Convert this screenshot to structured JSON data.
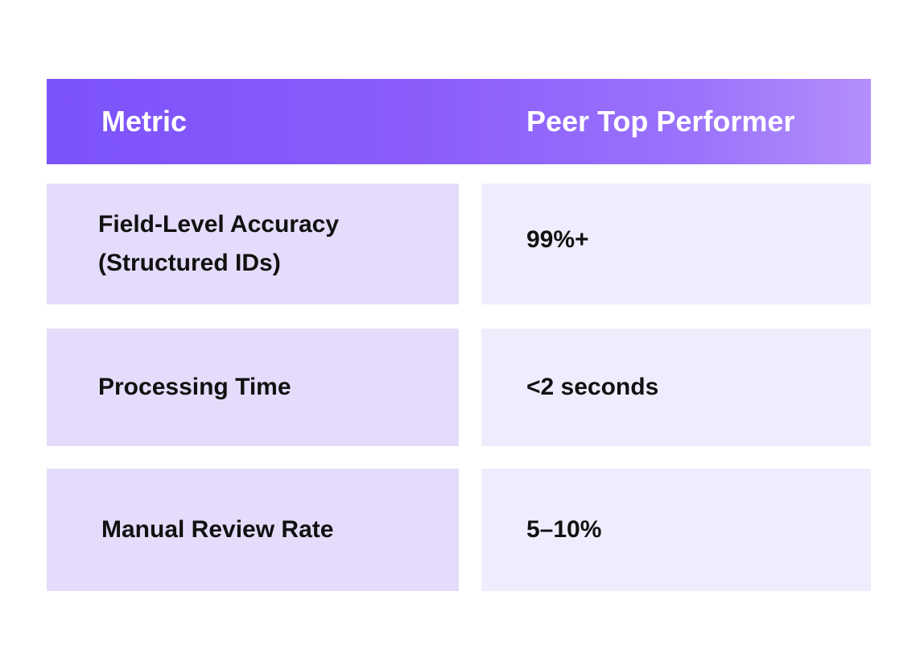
{
  "table": {
    "headers": {
      "metric": "Metric",
      "peer": "Peer Top Performer"
    },
    "rows": [
      {
        "metric": "Field-Level Accuracy (Structured IDs)",
        "value": "99%+"
      },
      {
        "metric": "Processing Time",
        "value": "<2 seconds"
      },
      {
        "metric": "Manual Review Rate",
        "value": "5–10%"
      }
    ]
  },
  "colors": {
    "header_gradient_start": "#7c52fb",
    "header_gradient_end": "#b38efb",
    "metric_cell_bg": "#e4dcfa",
    "value_cell_bg": "#f1ecfd",
    "header_text": "#ffffff",
    "body_text": "#111111"
  }
}
